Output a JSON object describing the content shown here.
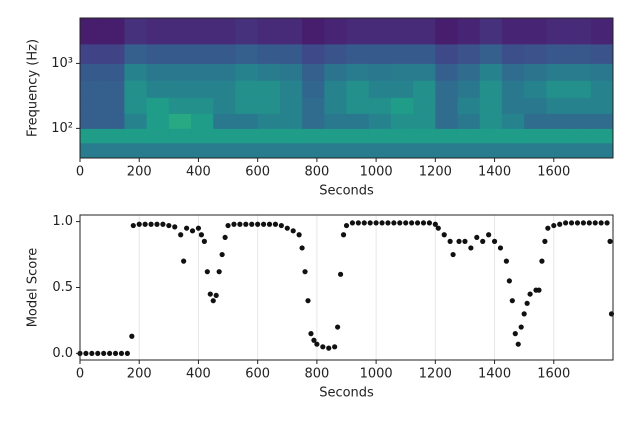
{
  "chart_data": [
    {
      "type": "heatmap",
      "xlabel": "Seconds",
      "ylabel": "Frequency (Hz)",
      "colormap": "viridis",
      "log_y": true,
      "xlim": [
        0,
        1800
      ],
      "xticks": [
        0,
        200,
        400,
        600,
        800,
        1000,
        1200,
        1400,
        1600
      ],
      "ylim": [
        35,
        5000
      ],
      "yticks": [
        {
          "value": 100,
          "label": "10²"
        },
        {
          "value": 1000,
          "label": "10³"
        }
      ],
      "bins": [
        0,
        75,
        150,
        225,
        300,
        375,
        450,
        525,
        600,
        675,
        750,
        825,
        900,
        975,
        1050,
        1125,
        1200,
        1275,
        1350,
        1425,
        1500,
        1575,
        1650,
        1725,
        1800
      ],
      "ybins": [
        35,
        60,
        100,
        170,
        300,
        550,
        1000,
        2000,
        5000
      ],
      "values": [
        [
          0.42,
          0.42,
          0.42,
          0.42,
          0.42,
          0.42,
          0.42,
          0.42,
          0.42,
          0.42,
          0.42,
          0.42,
          0.42,
          0.42,
          0.42,
          0.42,
          0.42,
          0.42,
          0.42,
          0.42,
          0.42,
          0.42,
          0.42,
          0.42
        ],
        [
          0.55,
          0.55,
          0.55,
          0.55,
          0.55,
          0.55,
          0.55,
          0.55,
          0.55,
          0.55,
          0.55,
          0.55,
          0.55,
          0.55,
          0.55,
          0.55,
          0.55,
          0.55,
          0.55,
          0.55,
          0.55,
          0.55,
          0.55,
          0.55
        ],
        [
          0.3,
          0.3,
          0.45,
          0.55,
          0.6,
          0.55,
          0.4,
          0.4,
          0.45,
          0.45,
          0.35,
          0.4,
          0.4,
          0.45,
          0.5,
          0.5,
          0.35,
          0.4,
          0.5,
          0.45,
          0.35,
          0.35,
          0.35,
          0.35
        ],
        [
          0.3,
          0.3,
          0.5,
          0.55,
          0.5,
          0.5,
          0.45,
          0.5,
          0.5,
          0.45,
          0.35,
          0.45,
          0.5,
          0.5,
          0.55,
          0.5,
          0.35,
          0.45,
          0.5,
          0.4,
          0.4,
          0.45,
          0.45,
          0.45
        ],
        [
          0.3,
          0.3,
          0.5,
          0.45,
          0.45,
          0.45,
          0.45,
          0.5,
          0.5,
          0.45,
          0.33,
          0.45,
          0.5,
          0.45,
          0.45,
          0.5,
          0.35,
          0.4,
          0.5,
          0.4,
          0.45,
          0.5,
          0.5,
          0.45
        ],
        [
          0.28,
          0.28,
          0.45,
          0.4,
          0.4,
          0.4,
          0.4,
          0.45,
          0.42,
          0.4,
          0.3,
          0.38,
          0.42,
          0.4,
          0.42,
          0.42,
          0.3,
          0.35,
          0.45,
          0.35,
          0.38,
          0.42,
          0.42,
          0.4
        ],
        [
          0.2,
          0.2,
          0.3,
          0.28,
          0.28,
          0.28,
          0.28,
          0.3,
          0.28,
          0.28,
          0.22,
          0.26,
          0.28,
          0.28,
          0.28,
          0.28,
          0.22,
          0.25,
          0.3,
          0.24,
          0.25,
          0.27,
          0.27,
          0.26
        ],
        [
          0.08,
          0.08,
          0.14,
          0.12,
          0.12,
          0.12,
          0.12,
          0.14,
          0.12,
          0.12,
          0.08,
          0.1,
          0.12,
          0.12,
          0.12,
          0.12,
          0.08,
          0.1,
          0.14,
          0.1,
          0.1,
          0.12,
          0.12,
          0.1
        ]
      ]
    },
    {
      "type": "scatter",
      "xlabel": "Seconds",
      "ylabel": "Model Score",
      "color": "#111111",
      "grid": true,
      "xlim": [
        0,
        1800
      ],
      "xticks": [
        0,
        200,
        400,
        600,
        800,
        1000,
        1200,
        1400,
        1600
      ],
      "ylim": [
        -0.05,
        1.05
      ],
      "yticks": [
        {
          "value": 0,
          "label": "0.0"
        },
        {
          "value": 0.5,
          "label": "0.5"
        },
        {
          "value": 1,
          "label": "1.0"
        }
      ],
      "x": [
        0,
        20,
        40,
        60,
        80,
        100,
        120,
        140,
        160,
        175,
        180,
        200,
        220,
        240,
        260,
        280,
        300,
        320,
        340,
        350,
        360,
        380,
        400,
        410,
        420,
        430,
        440,
        450,
        460,
        470,
        480,
        490,
        500,
        520,
        540,
        560,
        580,
        600,
        620,
        640,
        660,
        680,
        700,
        720,
        740,
        750,
        760,
        770,
        780,
        790,
        800,
        820,
        840,
        860,
        870,
        880,
        890,
        900,
        920,
        940,
        960,
        980,
        1000,
        1020,
        1040,
        1060,
        1080,
        1100,
        1120,
        1140,
        1160,
        1180,
        1200,
        1210,
        1230,
        1250,
        1260,
        1280,
        1300,
        1320,
        1340,
        1360,
        1380,
        1400,
        1420,
        1440,
        1450,
        1460,
        1470,
        1480,
        1490,
        1500,
        1510,
        1520,
        1540,
        1550,
        1560,
        1570,
        1580,
        1600,
        1620,
        1640,
        1660,
        1680,
        1700,
        1720,
        1740,
        1760,
        1780,
        1790,
        1795
      ],
      "values": [
        0,
        0,
        0,
        0,
        0,
        0,
        0,
        0,
        0,
        0.13,
        0.97,
        0.98,
        0.98,
        0.98,
        0.98,
        0.98,
        0.97,
        0.96,
        0.9,
        0.7,
        0.95,
        0.93,
        0.95,
        0.9,
        0.85,
        0.62,
        0.45,
        0.4,
        0.44,
        0.62,
        0.75,
        0.88,
        0.97,
        0.98,
        0.98,
        0.98,
        0.98,
        0.98,
        0.98,
        0.98,
        0.98,
        0.97,
        0.95,
        0.93,
        0.9,
        0.8,
        0.62,
        0.4,
        0.15,
        0.1,
        0.07,
        0.05,
        0.04,
        0.05,
        0.2,
        0.6,
        0.9,
        0.97,
        0.99,
        0.99,
        0.99,
        0.99,
        0.99,
        0.99,
        0.99,
        0.99,
        0.99,
        0.99,
        0.99,
        0.99,
        0.99,
        0.99,
        0.98,
        0.95,
        0.9,
        0.85,
        0.75,
        0.85,
        0.85,
        0.8,
        0.88,
        0.85,
        0.9,
        0.85,
        0.8,
        0.7,
        0.55,
        0.4,
        0.15,
        0.07,
        0.2,
        0.3,
        0.38,
        0.45,
        0.48,
        0.48,
        0.7,
        0.85,
        0.95,
        0.97,
        0.98,
        0.99,
        0.99,
        0.99,
        0.99,
        0.99,
        0.99,
        0.99,
        0.99,
        0.85,
        0.3
      ]
    }
  ]
}
